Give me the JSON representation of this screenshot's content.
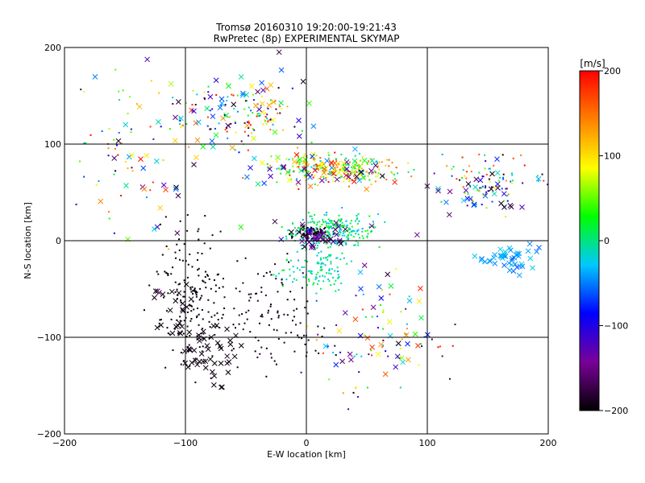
{
  "chart_data": {
    "type": "scatter",
    "title": "Tromsø 20160310 19:20:00-19:21:43",
    "subtitle": "RwPretec (8p) EXPERIMENTAL SKYMAP",
    "xlabel": "E-W location [km]",
    "ylabel": "N-S location [km]",
    "xlim": [
      -200,
      200
    ],
    "ylim": [
      -200,
      200
    ],
    "xticks": [
      "−200",
      "−100",
      "0",
      "100",
      "200"
    ],
    "yticks": [
      "−200",
      "−100",
      "0",
      "100",
      "200"
    ],
    "xtick_values": [
      -200,
      -100,
      0,
      100,
      200
    ],
    "ytick_values": [
      -200,
      -100,
      0,
      100,
      200
    ],
    "grid": true,
    "colorbar": {
      "label": "[m/s]",
      "range": [
        -200,
        200
      ],
      "ticks": [
        "200",
        "100",
        "0",
        "−100",
        "−200"
      ],
      "tick_values": [
        200,
        100,
        0,
        -100,
        -200
      ],
      "colormap": [
        "#000000",
        "#7a0099",
        "#0000ff",
        "#00c8ff",
        "#00ff00",
        "#ffff00",
        "#ff8000",
        "#ff0000"
      ]
    },
    "marker_types": [
      "dot",
      "x"
    ],
    "clusters": [
      {
        "marker": "dot",
        "center": [
          25,
          75
        ],
        "spread": [
          45,
          12
        ],
        "velocity": [
          -40,
          200
        ],
        "n": 260
      },
      {
        "marker": "dot",
        "center": [
          -55,
          130
        ],
        "spread": [
          40,
          25
        ],
        "velocity": [
          -200,
          200
        ],
        "n": 120
      },
      {
        "marker": "dot",
        "center": [
          20,
          10
        ],
        "spread": [
          30,
          15
        ],
        "velocity": [
          -40,
          40
        ],
        "n": 260
      },
      {
        "marker": "dot",
        "center": [
          5,
          8
        ],
        "spread": [
          12,
          5
        ],
        "velocity": [
          -200,
          -180
        ],
        "n": 90
      },
      {
        "marker": "dot",
        "center": [
          10,
          -30
        ],
        "spread": [
          25,
          20
        ],
        "velocity": [
          -40,
          20
        ],
        "n": 120
      },
      {
        "marker": "dot",
        "center": [
          -95,
          -60
        ],
        "spread": [
          25,
          60
        ],
        "velocity": [
          -200,
          -190
        ],
        "n": 170
      },
      {
        "marker": "dot",
        "center": [
          -30,
          -80
        ],
        "spread": [
          35,
          50
        ],
        "velocity": [
          -200,
          -180
        ],
        "n": 110
      },
      {
        "marker": "dot",
        "center": [
          150,
          60
        ],
        "spread": [
          35,
          25
        ],
        "velocity": [
          -200,
          200
        ],
        "n": 90
      },
      {
        "marker": "dot",
        "center": [
          60,
          -100
        ],
        "spread": [
          50,
          50
        ],
        "velocity": [
          -200,
          200
        ],
        "n": 70
      },
      {
        "marker": "dot",
        "center": [
          -150,
          90
        ],
        "spread": [
          40,
          80
        ],
        "velocity": [
          -200,
          200
        ],
        "n": 50
      },
      {
        "marker": "x",
        "center": [
          170,
          -20
        ],
        "spread": [
          22,
          12
        ],
        "velocity": [
          -60,
          -20
        ],
        "n": 45
      },
      {
        "marker": "x",
        "center": [
          -80,
          -120
        ],
        "spread": [
          20,
          30
        ],
        "velocity": [
          -200,
          -190
        ],
        "n": 45
      },
      {
        "marker": "x",
        "center": [
          -110,
          -80
        ],
        "spread": [
          15,
          25
        ],
        "velocity": [
          -200,
          -190
        ],
        "n": 25
      },
      {
        "marker": "x",
        "center": [
          20,
          75
        ],
        "spread": [
          50,
          15
        ],
        "velocity": [
          -200,
          200
        ],
        "n": 70
      },
      {
        "marker": "x",
        "center": [
          -50,
          140
        ],
        "spread": [
          50,
          35
        ],
        "velocity": [
          -200,
          200
        ],
        "n": 45
      },
      {
        "marker": "x",
        "center": [
          150,
          50
        ],
        "spread": [
          35,
          25
        ],
        "velocity": [
          -200,
          0
        ],
        "n": 30
      },
      {
        "marker": "x",
        "center": [
          10,
          5
        ],
        "spread": [
          25,
          15
        ],
        "velocity": [
          -200,
          -100
        ],
        "n": 40
      },
      {
        "marker": "x",
        "center": [
          -120,
          60
        ],
        "spread": [
          50,
          80
        ],
        "velocity": [
          -200,
          200
        ],
        "n": 40
      },
      {
        "marker": "x",
        "center": [
          60,
          -80
        ],
        "spread": [
          40,
          60
        ],
        "velocity": [
          -200,
          200
        ],
        "n": 40
      }
    ]
  }
}
